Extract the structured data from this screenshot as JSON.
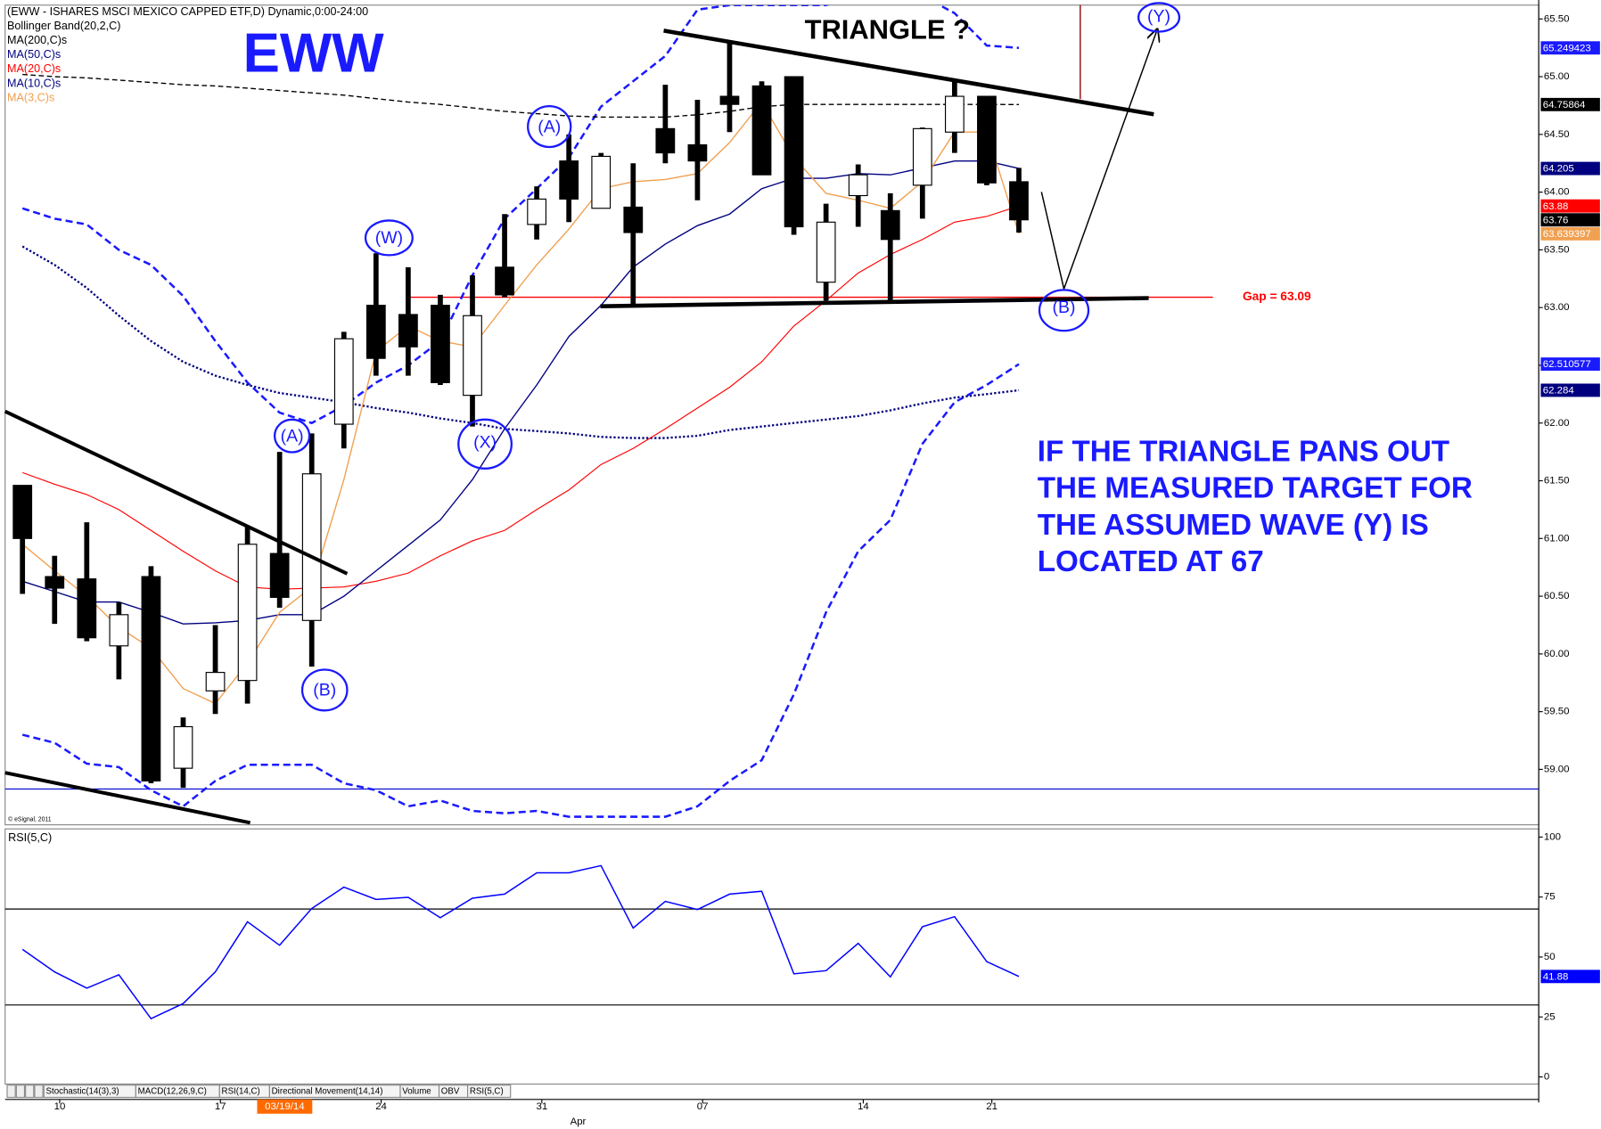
{
  "chart_data": [
    {
      "type": "candlestick",
      "title": "(EWW - ISHARES MSCI MEXICO CAPPED ETF,D) Dynamic,0:00-24:00",
      "categories": [
        null,
        "10",
        null,
        null,
        null,
        null,
        "17",
        null,
        "03/19/14",
        null,
        null,
        "24",
        null,
        null,
        null,
        null,
        "31",
        null,
        null,
        null,
        null,
        "07",
        null,
        null,
        null,
        null,
        "14",
        null,
        null,
        null,
        "21",
        null
      ],
      "x_secondary": [
        null,
        null,
        null,
        null,
        null,
        null,
        null,
        null,
        null,
        null,
        null,
        null,
        null,
        null,
        null,
        null,
        null,
        "Apr",
        null,
        null,
        null,
        null,
        null,
        null,
        null,
        null,
        null,
        null,
        null,
        null,
        null,
        null
      ],
      "open": [
        61.46,
        60.67,
        60.65,
        60.07,
        60.67,
        59.01,
        59.68,
        59.77,
        60.87,
        60.29,
        61.99,
        63.02,
        62.94,
        63.02,
        62.24,
        63.35,
        63.72,
        64.27,
        63.86,
        63.87,
        64.55,
        64.41,
        64.83,
        64.92,
        65.0,
        63.22,
        63.97,
        63.84,
        64.06,
        64.52,
        64.83,
        64.09
      ],
      "high": [
        61.46,
        60.85,
        61.14,
        60.45,
        60.76,
        59.45,
        60.25,
        61.11,
        61.75,
        61.91,
        62.79,
        63.47,
        63.35,
        63.11,
        63.28,
        63.81,
        64.05,
        64.5,
        64.34,
        64.25,
        64.93,
        64.8,
        65.31,
        64.96,
        65.0,
        63.9,
        64.24,
        63.99,
        64.56,
        64.98,
        64.83,
        64.21
      ],
      "low": [
        60.52,
        60.26,
        60.11,
        59.78,
        58.88,
        58.84,
        59.48,
        59.57,
        60.4,
        59.89,
        61.78,
        62.41,
        62.41,
        62.33,
        61.97,
        63.09,
        63.59,
        63.74,
        63.86,
        63.02,
        64.25,
        63.93,
        64.52,
        64.15,
        63.63,
        63.06,
        63.7,
        63.06,
        63.77,
        64.34,
        64.06,
        63.65
      ],
      "close": [
        61.0,
        60.57,
        60.14,
        60.34,
        58.9,
        59.37,
        59.84,
        60.95,
        60.49,
        61.56,
        62.73,
        62.56,
        62.66,
        62.35,
        62.93,
        63.11,
        63.94,
        63.94,
        64.31,
        63.65,
        64.34,
        64.27,
        64.76,
        64.15,
        63.7,
        63.74,
        64.15,
        63.59,
        64.55,
        64.83,
        64.08,
        63.76
      ],
      "up_color": "#ffffff",
      "down_color": "#000000",
      "bands": {
        "name": "Bollinger Band(20,2,C)",
        "color": "#1a1aff",
        "upper": [
          63.86,
          63.77,
          63.72,
          63.5,
          63.37,
          63.1,
          62.71,
          62.35,
          62.09,
          62.0,
          62.15,
          62.35,
          62.5,
          62.71,
          63.28,
          63.77,
          64.03,
          64.3,
          64.74,
          64.96,
          65.18,
          65.58,
          65.62,
          65.62,
          65.62,
          65.62,
          65.72,
          65.74,
          65.7,
          65.55,
          65.27,
          65.249423
        ],
        "lower": [
          59.3,
          59.23,
          59.05,
          59.02,
          58.82,
          58.68,
          58.9,
          59.04,
          59.04,
          59.04,
          58.88,
          58.82,
          58.68,
          58.73,
          58.64,
          58.62,
          58.64,
          58.59,
          58.59,
          58.59,
          58.59,
          58.68,
          58.9,
          59.08,
          59.65,
          60.36,
          60.89,
          61.16,
          61.82,
          62.18,
          62.33,
          62.510577
        ]
      },
      "series": [
        {
          "name": "MA(200,C)s",
          "color": "#000000",
          "dash": "5 3",
          "width": 1.2,
          "values": [
            65.02,
            65.0,
            64.99,
            64.97,
            64.95,
            64.93,
            64.92,
            64.9,
            64.88,
            64.86,
            64.84,
            64.81,
            64.78,
            64.76,
            64.73,
            64.7,
            64.68,
            64.66,
            64.65,
            64.65,
            64.65,
            64.67,
            64.7,
            64.74,
            64.76,
            64.76,
            64.76,
            64.76,
            64.76,
            64.76,
            64.76,
            64.75864
          ]
        },
        {
          "name": "MA(50,C)s",
          "color": "#00007f",
          "dash": "2 2",
          "width": 2,
          "values": [
            63.53,
            63.37,
            63.17,
            62.93,
            62.71,
            62.53,
            62.41,
            62.33,
            62.26,
            62.22,
            62.18,
            62.13,
            62.09,
            62.04,
            62.0,
            61.95,
            61.93,
            61.91,
            61.88,
            61.87,
            61.87,
            61.89,
            61.94,
            61.97,
            62.0,
            62.03,
            62.06,
            62.11,
            62.17,
            62.22,
            62.25,
            62.284
          ]
        },
        {
          "name": "MA(20,C)s",
          "color": "#ff0000",
          "dash": null,
          "width": 1,
          "values": [
            61.57,
            61.47,
            61.38,
            61.25,
            61.07,
            60.89,
            60.72,
            60.58,
            60.56,
            60.57,
            60.58,
            60.63,
            60.7,
            60.85,
            60.98,
            61.07,
            61.25,
            61.42,
            61.64,
            61.78,
            61.95,
            62.13,
            62.31,
            62.53,
            62.84,
            63.06,
            63.3,
            63.46,
            63.59,
            63.74,
            63.79,
            63.88
          ]
        },
        {
          "name": "MA(10,C)s",
          "color": "#000080",
          "dash": null,
          "width": 1.2,
          "values": [
            60.63,
            60.54,
            60.45,
            60.45,
            60.36,
            60.26,
            60.27,
            60.29,
            60.34,
            60.34,
            60.5,
            60.72,
            60.94,
            61.16,
            61.51,
            61.95,
            62.33,
            62.75,
            63.02,
            63.35,
            63.55,
            63.71,
            63.81,
            64.03,
            64.12,
            64.12,
            64.16,
            64.15,
            64.21,
            64.27,
            64.27,
            64.205
          ]
        },
        {
          "name": "MA(3,C)s",
          "color": "#f0a050",
          "dash": null,
          "width": 1.2,
          "values": [
            60.95,
            60.72,
            60.5,
            60.23,
            60.05,
            59.7,
            59.57,
            59.92,
            60.36,
            60.58,
            61.51,
            62.62,
            62.84,
            62.71,
            62.66,
            63.02,
            63.37,
            63.68,
            64.03,
            64.09,
            64.11,
            64.16,
            64.43,
            64.78,
            64.3,
            63.99,
            63.93,
            63.86,
            64.09,
            64.52,
            64.52,
            63.639397
          ]
        }
      ],
      "last_value_tags": true,
      "ylim": [
        58.52,
        65.62
      ],
      "yticks": [
        {
          "value": 59,
          "label": "59.00"
        },
        {
          "value": 59.5,
          "label": "59.50"
        },
        {
          "value": 60,
          "label": "60.00"
        },
        {
          "value": 60.5,
          "label": "60.50"
        },
        {
          "value": 61,
          "label": "61.00"
        },
        {
          "value": 61.5,
          "label": "61.50"
        },
        {
          "value": 62,
          "label": "62.00"
        },
        {
          "value": 62.5,
          "label": "62.50"
        },
        {
          "value": 63,
          "label": "63.00"
        },
        {
          "value": 63.5,
          "label": "63.50"
        },
        {
          "value": 64,
          "label": "64.00"
        },
        {
          "value": 64.5,
          "label": "64.50"
        },
        {
          "value": 65,
          "label": "65.00"
        },
        {
          "value": 65.5,
          "label": "65.50"
        }
      ],
      "gap": {
        "value": 63.09,
        "label": "Gap = 63.09",
        "color": "#ff0000"
      },
      "hline": {
        "value": 58.83,
        "color": "#0000cc"
      },
      "annotations": {
        "symbol": "EWW",
        "pattern": "TRIANGLE ?",
        "note": [
          "IF THE TRIANGLE PANS OUT",
          "THE MEASURED TARGET FOR",
          "THE ASSUMED WAVE (Y) IS",
          "LOCATED AT 67"
        ],
        "waves": [
          "(A)",
          "(B)",
          "(W)",
          "(X)",
          "(A)",
          "(B)",
          "(Y)"
        ]
      },
      "copyright": "© eSignal, 2011"
    },
    {
      "type": "line",
      "title": "RSI(5,C)",
      "series": [
        {
          "name": "RSI(5,C)",
          "color": "#0000ff",
          "values": [
            53.2,
            43.8,
            37.0,
            42.6,
            24.3,
            30.6,
            43.8,
            64.7,
            54.9,
            70.2,
            79.1,
            74.0,
            74.9,
            66.4,
            74.5,
            76.2,
            85.1,
            85.1,
            88.1,
            62.1,
            73.2,
            69.8,
            76.2,
            77.4,
            43.0,
            44.3,
            55.7,
            41.7,
            62.6,
            66.8,
            48.1,
            41.88
          ]
        }
      ],
      "levels": [
        70,
        30
      ],
      "ylim": [
        0,
        100
      ],
      "yticks": [
        0,
        25,
        50,
        75,
        100
      ]
    }
  ],
  "tabs": [
    "Stochastic(14(3),3)",
    "MACD(12,26,9,C)",
    "RSI(14,C)",
    "Directional Movement(14,14)",
    "Volume",
    "OBV",
    "RSI(5,C)"
  ]
}
